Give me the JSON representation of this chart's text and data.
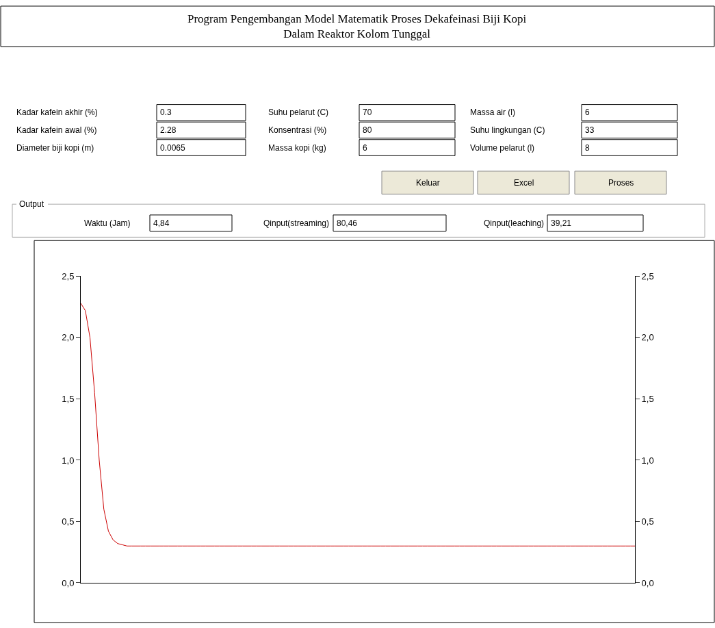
{
  "chart_data": [
    {
      "type": "other",
      "title": "Program Pengembangan Model Matematik Proses Dekafeinasi Biji Kopi\nDalam Reaktor Kolom Tunggal",
      "annotations": [
        "Kadar kafein akhir (%)",
        "0.3",
        "Suhu pelarut (C)",
        "70",
        "Massa air (l)",
        "6",
        "Kadar kafein awal (%)",
        "2.28",
        "Konsentrasi (%)",
        "80",
        "Suhu lingkungan (C)",
        "33",
        "Diameter biji kopi (m)",
        "0.0065",
        "Massa kopi (kg)",
        "6",
        "Volume pelarut (l)",
        "8",
        "Keluar",
        "Excel",
        "Proses",
        "Output",
        "Waktu (Jam)",
        "4,84",
        "Qinput(streaming)",
        "80,46",
        "Qinput(leaching)",
        "39,21"
      ]
    },
    {
      "type": "line",
      "categories": [
        null,
        null,
        null,
        null,
        null,
        null,
        null,
        null,
        null,
        null,
        null,
        null,
        null,
        null,
        null,
        null,
        null,
        null,
        null,
        null,
        null,
        null,
        null,
        null,
        null,
        null,
        null,
        null,
        null,
        null,
        null,
        null,
        null,
        null,
        null,
        null,
        null,
        null,
        null,
        null,
        null,
        null,
        null,
        null,
        null,
        null,
        null,
        null,
        null,
        null,
        null,
        null,
        null,
        null,
        null,
        null,
        null,
        null,
        null,
        null,
        null,
        null,
        null,
        null,
        null,
        null,
        null,
        null,
        null,
        null,
        null,
        null,
        null,
        null,
        null,
        null,
        null,
        null,
        null,
        null,
        null,
        null,
        null,
        null,
        null,
        null,
        null,
        null,
        null,
        null,
        null,
        null,
        null,
        null,
        null,
        null,
        null,
        null,
        null,
        null,
        null,
        null,
        null,
        null,
        null,
        null,
        null,
        null,
        null,
        null,
        null,
        null,
        null,
        null,
        null,
        null,
        null,
        null,
        null,
        null,
        null
      ],
      "series": [
        {
          "color": "#cc0000",
          "values": [
            2.28,
            2.22,
            2.0,
            1.55,
            1.0,
            0.6,
            0.42,
            0.35,
            0.32,
            0.31,
            0.3,
            0.3,
            0.3,
            0.3,
            0.3,
            0.3,
            0.3,
            0.3,
            0.3,
            0.3,
            0.3,
            0.3,
            0.3,
            0.3,
            0.3,
            0.3,
            0.3,
            0.3,
            0.3,
            0.3,
            0.3,
            0.3,
            0.3,
            0.3,
            0.3,
            0.3,
            0.3,
            0.3,
            0.3,
            0.3,
            0.3,
            0.3,
            0.3,
            0.3,
            0.3,
            0.3,
            0.3,
            0.3,
            0.3,
            0.3,
            0.3,
            0.3,
            0.3,
            0.3,
            0.3,
            0.3,
            0.3,
            0.3,
            0.3,
            0.3,
            0.3,
            0.3,
            0.3,
            0.3,
            0.3,
            0.3,
            0.3,
            0.3,
            0.3,
            0.3,
            0.3,
            0.3,
            0.3,
            0.3,
            0.3,
            0.3,
            0.3,
            0.3,
            0.3,
            0.3,
            0.3,
            0.3,
            0.3,
            0.3,
            0.3,
            0.3,
            0.3,
            0.3,
            0.3,
            0.3,
            0.3,
            0.3,
            0.3,
            0.3,
            0.3,
            0.3,
            0.3,
            0.3,
            0.3,
            0.3,
            0.3,
            0.3,
            0.3,
            0.3,
            0.3,
            0.3,
            0.3,
            0.3,
            0.3,
            0.3,
            0.3,
            0.3,
            0.3,
            0.3,
            0.3,
            0.3,
            0.3,
            0.3,
            0.3,
            0.3,
            0.3
          ]
        }
      ],
      "ylim": [
        0,
        2.5
      ],
      "yticks": [
        {
          "value": 0,
          "label": "0,0"
        },
        {
          "value": 0.5,
          "label": "0,5"
        },
        {
          "value": 1,
          "label": "1,0"
        },
        {
          "value": 1.5,
          "label": "1,5"
        },
        {
          "value": 2,
          "label": "2,0"
        },
        {
          "value": 2.5,
          "label": "2,5"
        }
      ],
      "y2lim": [
        0,
        2.5
      ],
      "y2ticks": [
        {
          "value": 0,
          "label": "0,0"
        },
        {
          "value": 0.5,
          "label": "0,5"
        },
        {
          "value": 1,
          "label": "1,0"
        },
        {
          "value": 1.5,
          "label": "1,5"
        },
        {
          "value": 2,
          "label": "2,0"
        },
        {
          "value": 2.5,
          "label": "2,5"
        }
      ],
      "tick_labels": "y",
      "marker": "none",
      "line_style": "solid"
    }
  ]
}
